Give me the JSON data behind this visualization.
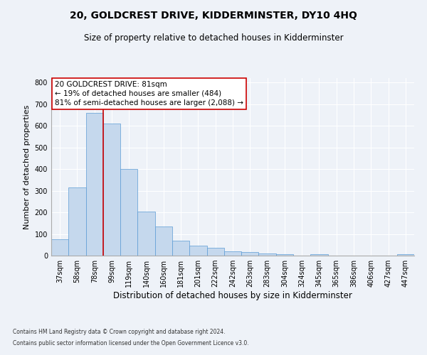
{
  "title": "20, GOLDCREST DRIVE, KIDDERMINSTER, DY10 4HQ",
  "subtitle": "Size of property relative to detached houses in Kidderminster",
  "xlabel": "Distribution of detached houses by size in Kidderminster",
  "ylabel": "Number of detached properties",
  "categories": [
    "37sqm",
    "58sqm",
    "78sqm",
    "99sqm",
    "119sqm",
    "140sqm",
    "160sqm",
    "181sqm",
    "201sqm",
    "222sqm",
    "242sqm",
    "263sqm",
    "283sqm",
    "304sqm",
    "324sqm",
    "345sqm",
    "365sqm",
    "386sqm",
    "406sqm",
    "427sqm",
    "447sqm"
  ],
  "values": [
    75,
    315,
    660,
    610,
    400,
    205,
    135,
    70,
    45,
    35,
    20,
    15,
    10,
    5,
    0,
    8,
    0,
    0,
    0,
    0,
    5
  ],
  "bar_color": "#c5d8ed",
  "bar_edge_color": "#5b9bd5",
  "property_line_x": 2.5,
  "property_line_color": "#cc0000",
  "annotation_text": "20 GOLDCREST DRIVE: 81sqm\n← 19% of detached houses are smaller (484)\n81% of semi-detached houses are larger (2,088) →",
  "annotation_box_color": "#ffffff",
  "annotation_box_edge": "#cc0000",
  "footnote1": "Contains HM Land Registry data © Crown copyright and database right 2024.",
  "footnote2": "Contains public sector information licensed under the Open Government Licence v3.0.",
  "ylim": [
    0,
    820
  ],
  "background_color": "#eef2f8",
  "plot_background": "#eef2f8",
  "grid_color": "#ffffff",
  "title_fontsize": 10,
  "subtitle_fontsize": 8.5,
  "tick_fontsize": 7,
  "ylabel_fontsize": 8,
  "xlabel_fontsize": 8.5,
  "annotation_fontsize": 7.5,
  "footnote_fontsize": 5.5
}
